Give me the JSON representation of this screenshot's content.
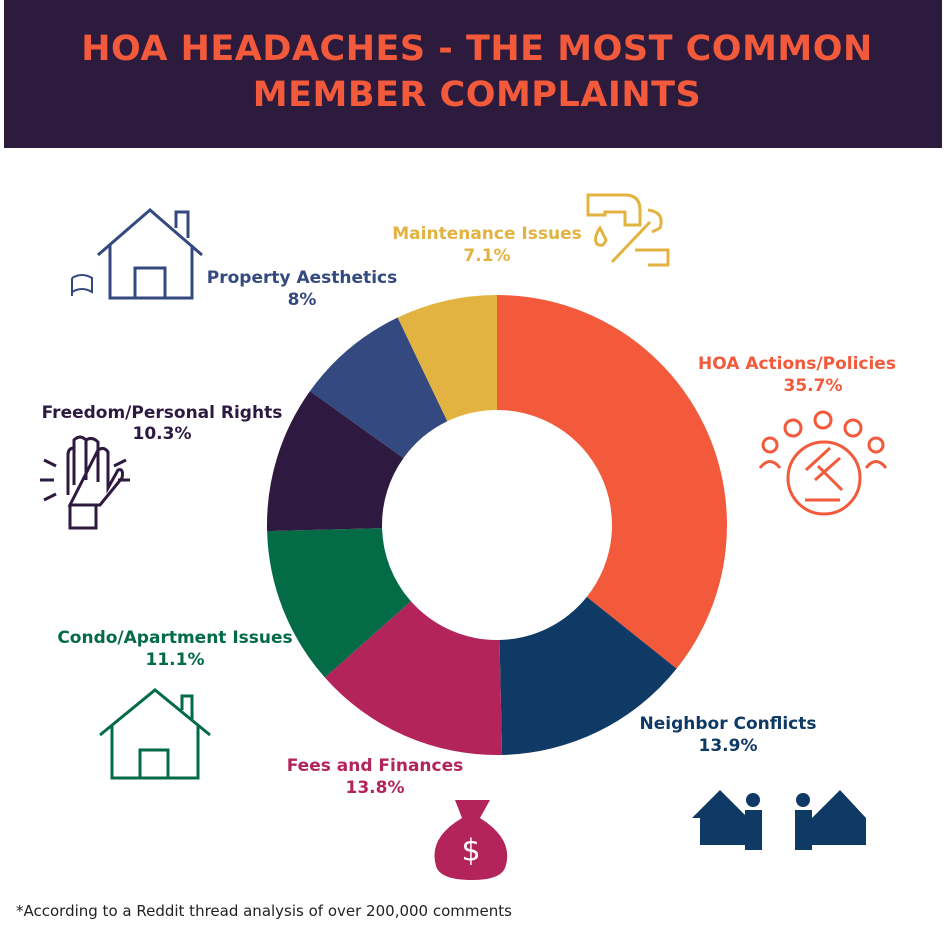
{
  "chart_data": {
    "type": "donut",
    "title": "HOA HEADACHES - THE MOST COMMON MEMBER COMPLAINTS",
    "categories": [
      "HOA Actions/Policies",
      "Neighbor Conflicts",
      "Fees and Finances",
      "Condo/Apartment Issues",
      "Freedom/Personal Rights",
      "Property Aesthetics",
      "Maintenance Issues"
    ],
    "values": [
      35.7,
      13.9,
      13.8,
      11.1,
      10.3,
      8,
      7.1
    ],
    "value_labels": [
      "35.7%",
      "13.9%",
      "13.8%",
      "11.1%",
      "10.3%",
      "8%",
      "7.1%"
    ],
    "colors": [
      "#f25a3b",
      "#0f3a66",
      "#b3245b",
      "#036b45",
      "#2e1a40",
      "#34497f",
      "#e3b341"
    ],
    "footnote": "*According to a Reddit thread analysis of over 200,000 comments"
  }
}
